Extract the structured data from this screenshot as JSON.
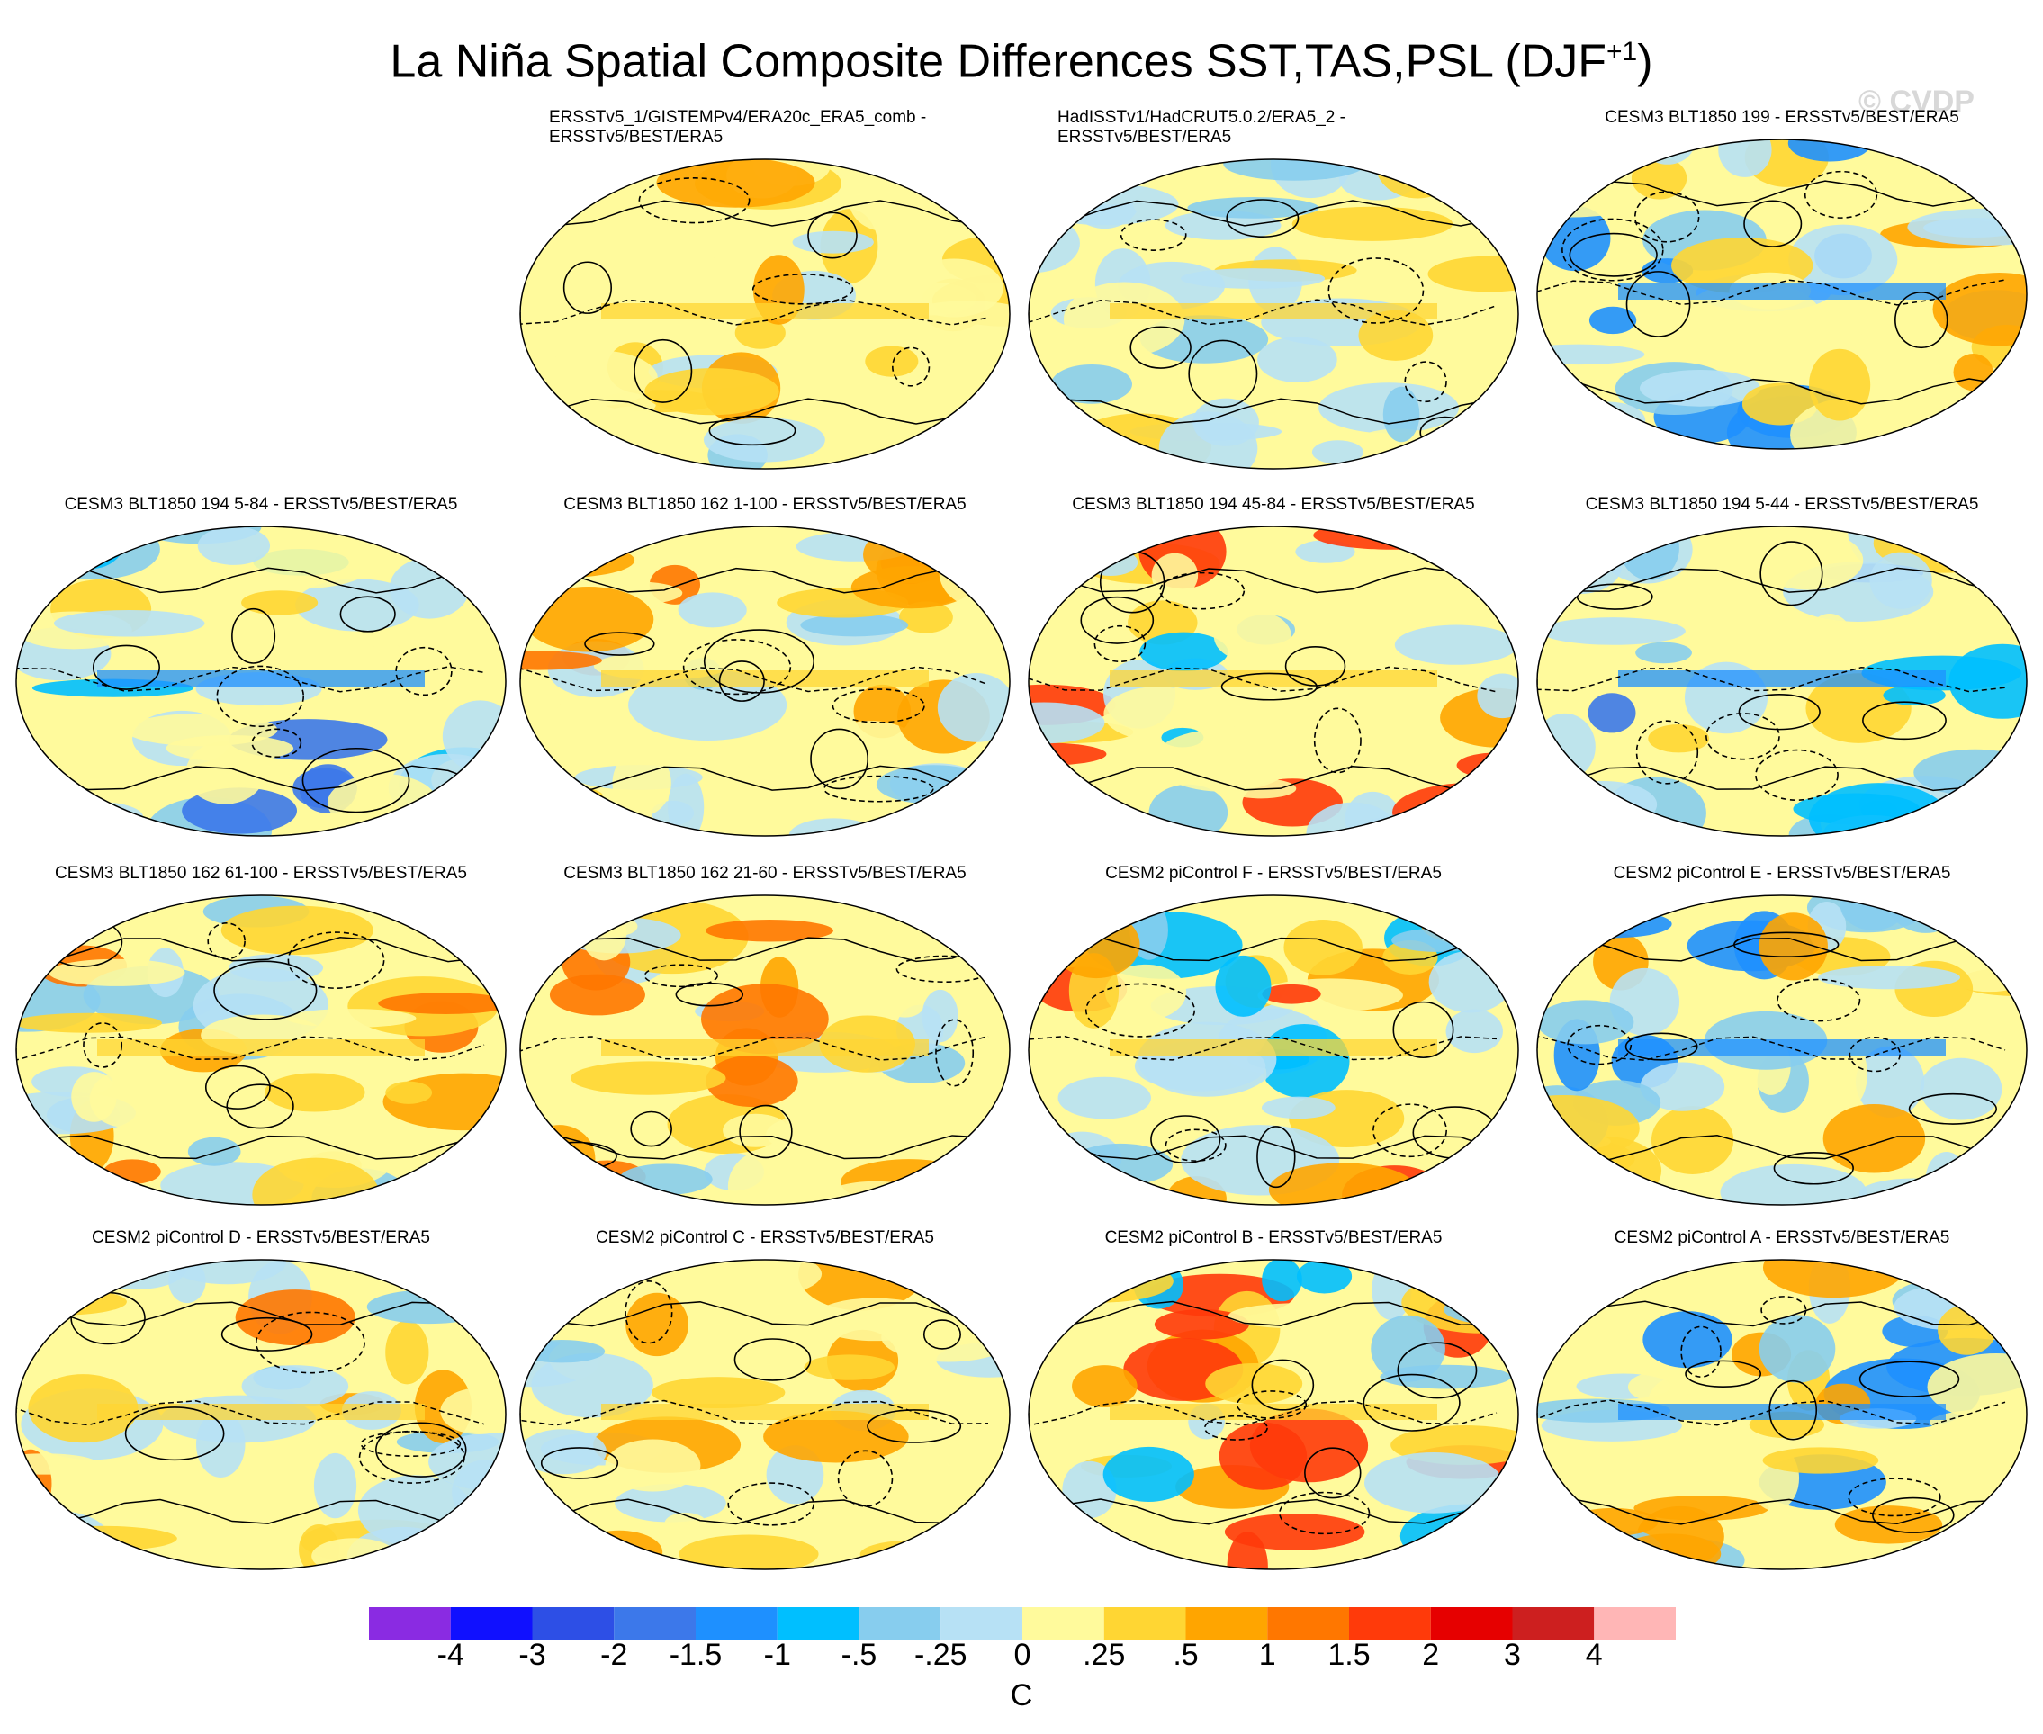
{
  "title_main": "La Niña Spatial Composite Differences SST,TAS,PSL (DJF",
  "title_sup": "+1",
  "title_close": ")",
  "watermark": "© CVDP",
  "panels": [
    {
      "title": "ERSSTv5_1/GISTEMPv4/ERA20c_ERA5_comb -\nERSSTv5/BEST/ERA5",
      "style": "warm-north"
    },
    {
      "title": "HadISSTv1/HadCRUT5.0.2/ERA5_2 -\nERSSTv5/BEST/ERA5",
      "style": "weak"
    },
    {
      "title": "CESM3 BLT1850 199 - ERSSTv5/BEST/ERA5",
      "style": "cool-eq"
    },
    {
      "title": "CESM3 BLT1850 194 5-84 - ERSSTv5/BEST/ERA5",
      "style": "cool-north"
    },
    {
      "title": "CESM3 BLT1850 162 1-100 - ERSSTv5/BEST/ERA5",
      "style": "warm-eq"
    },
    {
      "title": "CESM3 BLT1850 194 45-84 - ERSSTv5/BEST/ERA5",
      "style": "warm-na"
    },
    {
      "title": "CESM3 BLT1850 194 5-44 - ERSSTv5/BEST/ERA5",
      "style": "cool-north"
    },
    {
      "title": "CESM3 BLT1850 162 61-100 - ERSSTv5/BEST/ERA5",
      "style": "warm-eq"
    },
    {
      "title": "CESM3 BLT1850 162 21-60 - ERSSTv5/BEST/ERA5",
      "style": "warm-eq"
    },
    {
      "title": "CESM2 piControl F - ERSSTv5/BEST/ERA5",
      "style": "warm-na"
    },
    {
      "title": "CESM2 piControl E - ERSSTv5/BEST/ERA5",
      "style": "cool-eq"
    },
    {
      "title": "CESM2 piControl D - ERSSTv5/BEST/ERA5",
      "style": "warm-eq"
    },
    {
      "title": "CESM2 piControl C - ERSSTv5/BEST/ERA5",
      "style": "warm-north"
    },
    {
      "title": "CESM2 piControl B - ERSSTv5/BEST/ERA5",
      "style": "warm-na"
    },
    {
      "title": "CESM2 piControl A - ERSSTv5/BEST/ERA5",
      "style": "cool-eq"
    }
  ],
  "colorbar": {
    "colors": [
      "#8a2be2",
      "#1010ff",
      "#2d4fe6",
      "#3c78ea",
      "#1e90ff",
      "#00bfff",
      "#87cdee",
      "#b7e1f5",
      "#fffa9c",
      "#ffd633",
      "#ffa500",
      "#ff7700",
      "#ff3a0a",
      "#e60000",
      "#cd1f1f",
      "#ffb6b6"
    ],
    "labels": [
      "-4",
      "-3",
      "-2",
      "-1.5",
      "-1",
      "-.5",
      "-.25",
      "0",
      ".25",
      ".5",
      "1",
      "1.5",
      "2",
      "3",
      "4"
    ],
    "unit": "C"
  },
  "chart_data": {
    "type": "heatmap",
    "title": "La Niña Spatial Composite Differences SST,TAS,PSL (DJF+1)",
    "projection": "Robinson global maps, 15 panels (4 rows)",
    "fields": [
      "SST/TAS difference (shaded)",
      "PSL difference (contours; dashed negative)"
    ],
    "colorbar_levels": [
      -4,
      -3,
      -2,
      -1.5,
      -1,
      -0.5,
      -0.25,
      0,
      0.25,
      0.5,
      1,
      1.5,
      2,
      3,
      4
    ],
    "units": "C"
  }
}
